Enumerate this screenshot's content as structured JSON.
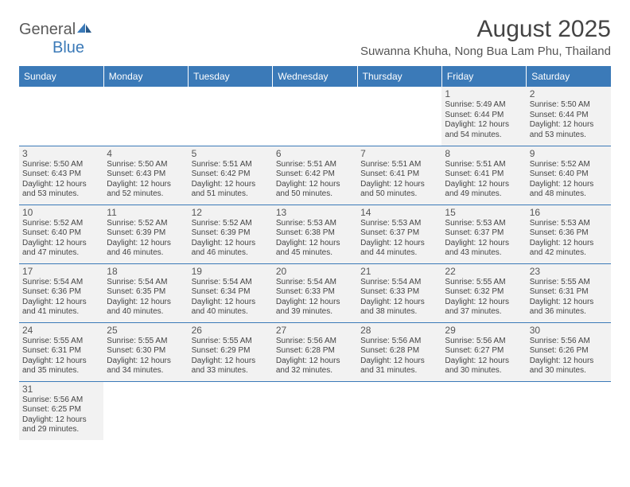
{
  "logo": {
    "text_general": "General",
    "text_blue": "Blue"
  },
  "title": "August 2025",
  "location": "Suwanna Khuha, Nong Bua Lam Phu, Thailand",
  "header_color": "#3b7ab8",
  "cell_bg": "#f2f2f2",
  "weekdays": [
    "Sunday",
    "Monday",
    "Tuesday",
    "Wednesday",
    "Thursday",
    "Friday",
    "Saturday"
  ],
  "weeks": [
    [
      null,
      null,
      null,
      null,
      null,
      {
        "n": "1",
        "sr": "5:49 AM",
        "ss": "6:44 PM",
        "dl": "12 hours and 54 minutes."
      },
      {
        "n": "2",
        "sr": "5:50 AM",
        "ss": "6:44 PM",
        "dl": "12 hours and 53 minutes."
      }
    ],
    [
      {
        "n": "3",
        "sr": "5:50 AM",
        "ss": "6:43 PM",
        "dl": "12 hours and 53 minutes."
      },
      {
        "n": "4",
        "sr": "5:50 AM",
        "ss": "6:43 PM",
        "dl": "12 hours and 52 minutes."
      },
      {
        "n": "5",
        "sr": "5:51 AM",
        "ss": "6:42 PM",
        "dl": "12 hours and 51 minutes."
      },
      {
        "n": "6",
        "sr": "5:51 AM",
        "ss": "6:42 PM",
        "dl": "12 hours and 50 minutes."
      },
      {
        "n": "7",
        "sr": "5:51 AM",
        "ss": "6:41 PM",
        "dl": "12 hours and 50 minutes."
      },
      {
        "n": "8",
        "sr": "5:51 AM",
        "ss": "6:41 PM",
        "dl": "12 hours and 49 minutes."
      },
      {
        "n": "9",
        "sr": "5:52 AM",
        "ss": "6:40 PM",
        "dl": "12 hours and 48 minutes."
      }
    ],
    [
      {
        "n": "10",
        "sr": "5:52 AM",
        "ss": "6:40 PM",
        "dl": "12 hours and 47 minutes."
      },
      {
        "n": "11",
        "sr": "5:52 AM",
        "ss": "6:39 PM",
        "dl": "12 hours and 46 minutes."
      },
      {
        "n": "12",
        "sr": "5:52 AM",
        "ss": "6:39 PM",
        "dl": "12 hours and 46 minutes."
      },
      {
        "n": "13",
        "sr": "5:53 AM",
        "ss": "6:38 PM",
        "dl": "12 hours and 45 minutes."
      },
      {
        "n": "14",
        "sr": "5:53 AM",
        "ss": "6:37 PM",
        "dl": "12 hours and 44 minutes."
      },
      {
        "n": "15",
        "sr": "5:53 AM",
        "ss": "6:37 PM",
        "dl": "12 hours and 43 minutes."
      },
      {
        "n": "16",
        "sr": "5:53 AM",
        "ss": "6:36 PM",
        "dl": "12 hours and 42 minutes."
      }
    ],
    [
      {
        "n": "17",
        "sr": "5:54 AM",
        "ss": "6:36 PM",
        "dl": "12 hours and 41 minutes."
      },
      {
        "n": "18",
        "sr": "5:54 AM",
        "ss": "6:35 PM",
        "dl": "12 hours and 40 minutes."
      },
      {
        "n": "19",
        "sr": "5:54 AM",
        "ss": "6:34 PM",
        "dl": "12 hours and 40 minutes."
      },
      {
        "n": "20",
        "sr": "5:54 AM",
        "ss": "6:33 PM",
        "dl": "12 hours and 39 minutes."
      },
      {
        "n": "21",
        "sr": "5:54 AM",
        "ss": "6:33 PM",
        "dl": "12 hours and 38 minutes."
      },
      {
        "n": "22",
        "sr": "5:55 AM",
        "ss": "6:32 PM",
        "dl": "12 hours and 37 minutes."
      },
      {
        "n": "23",
        "sr": "5:55 AM",
        "ss": "6:31 PM",
        "dl": "12 hours and 36 minutes."
      }
    ],
    [
      {
        "n": "24",
        "sr": "5:55 AM",
        "ss": "6:31 PM",
        "dl": "12 hours and 35 minutes."
      },
      {
        "n": "25",
        "sr": "5:55 AM",
        "ss": "6:30 PM",
        "dl": "12 hours and 34 minutes."
      },
      {
        "n": "26",
        "sr": "5:55 AM",
        "ss": "6:29 PM",
        "dl": "12 hours and 33 minutes."
      },
      {
        "n": "27",
        "sr": "5:56 AM",
        "ss": "6:28 PM",
        "dl": "12 hours and 32 minutes."
      },
      {
        "n": "28",
        "sr": "5:56 AM",
        "ss": "6:28 PM",
        "dl": "12 hours and 31 minutes."
      },
      {
        "n": "29",
        "sr": "5:56 AM",
        "ss": "6:27 PM",
        "dl": "12 hours and 30 minutes."
      },
      {
        "n": "30",
        "sr": "5:56 AM",
        "ss": "6:26 PM",
        "dl": "12 hours and 30 minutes."
      }
    ],
    [
      {
        "n": "31",
        "sr": "5:56 AM",
        "ss": "6:25 PM",
        "dl": "12 hours and 29 minutes."
      },
      null,
      null,
      null,
      null,
      null,
      null
    ]
  ],
  "labels": {
    "sunrise": "Sunrise: ",
    "sunset": "Sunset: ",
    "daylight": "Daylight: "
  }
}
